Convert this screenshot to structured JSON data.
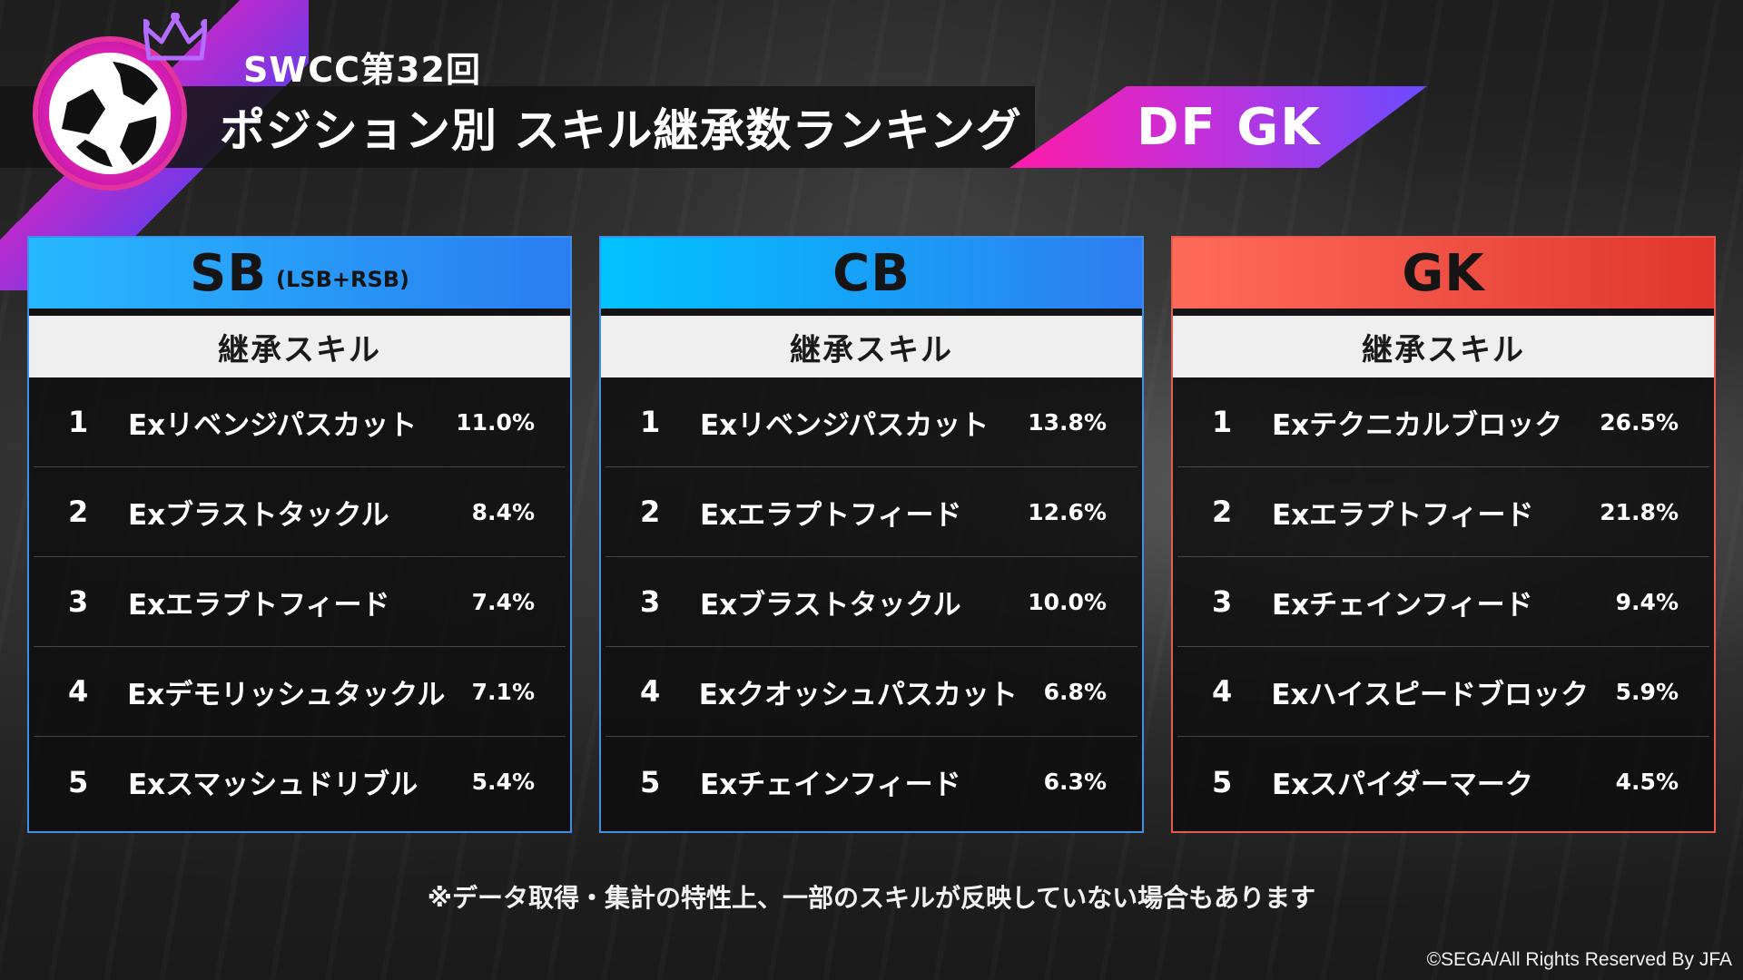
{
  "header": {
    "supertitle": "SWCC第32回",
    "title": "ポジション別 スキル継承数ランキング",
    "tag": "DF GK"
  },
  "colors": {
    "accent_magenta": "#ff1aa8",
    "accent_violet": "#6a4cff",
    "sb_header": "#2a7df0",
    "cb_header": "#00c3ff",
    "gk_header": "#e0362e"
  },
  "panels": [
    {
      "position": "SB",
      "position_sub": "(LSB+RSB)",
      "subheader": "継承スキル",
      "rows": [
        {
          "rank": "1",
          "skill": "Exリベンジパスカット",
          "pct": "11.0%"
        },
        {
          "rank": "2",
          "skill": "Exブラストタックル",
          "pct": "8.4%"
        },
        {
          "rank": "3",
          "skill": "Exエラプトフィード",
          "pct": "7.4%"
        },
        {
          "rank": "4",
          "skill": "Exデモリッシュタックル",
          "pct": "7.1%"
        },
        {
          "rank": "5",
          "skill": "Exスマッシュドリブル",
          "pct": "5.4%"
        }
      ]
    },
    {
      "position": "CB",
      "position_sub": "",
      "subheader": "継承スキル",
      "rows": [
        {
          "rank": "1",
          "skill": "Exリベンジパスカット",
          "pct": "13.8%"
        },
        {
          "rank": "2",
          "skill": "Exエラプトフィード",
          "pct": "12.6%"
        },
        {
          "rank": "3",
          "skill": "Exブラストタックル",
          "pct": "10.0%"
        },
        {
          "rank": "4",
          "skill": "Exクオッシュパスカット",
          "pct": "6.8%"
        },
        {
          "rank": "5",
          "skill": "Exチェインフィード",
          "pct": "6.3%"
        }
      ]
    },
    {
      "position": "GK",
      "position_sub": "",
      "subheader": "継承スキル",
      "rows": [
        {
          "rank": "1",
          "skill": "Exテクニカルブロック",
          "pct": "26.5%"
        },
        {
          "rank": "2",
          "skill": "Exエラプトフィード",
          "pct": "21.8%"
        },
        {
          "rank": "3",
          "skill": "Exチェインフィード",
          "pct": "9.4%"
        },
        {
          "rank": "4",
          "skill": "Exハイスピードブロック",
          "pct": "5.9%"
        },
        {
          "rank": "5",
          "skill": "Exスパイダーマーク",
          "pct": "4.5%"
        }
      ]
    }
  ],
  "note": "※データ取得・集計の特性上、一部のスキルが反映していない場合もあります",
  "copyright": "©SEGA/All Rights Reserved By JFA",
  "icons": [
    "soccer-ball-globe-icon",
    "crown-icon"
  ]
}
